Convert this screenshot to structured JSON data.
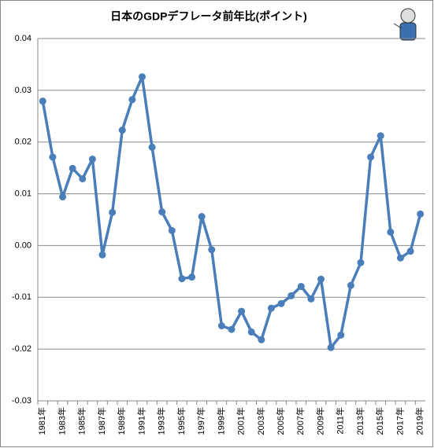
{
  "chart_data": {
    "type": "line",
    "title": "日本のGDPデフレータ前年比(ポイント)",
    "categories": [
      "1981年",
      null,
      "1983年",
      null,
      "1985年",
      null,
      "1987年",
      null,
      "1989年",
      null,
      "1991年",
      null,
      "1993年",
      null,
      "1995年",
      null,
      "1997年",
      null,
      "1999年",
      null,
      "2001年",
      null,
      "2003年",
      null,
      "2005年",
      null,
      "2007年",
      null,
      "2009年",
      null,
      "2011年",
      null,
      "2013年",
      null,
      "2015年",
      null,
      "2017年",
      null,
      "2019年"
    ],
    "values": [
      0.0279,
      0.0171,
      0.0094,
      0.0149,
      0.0129,
      0.0167,
      -0.0018,
      0.0064,
      0.0223,
      0.0282,
      0.0326,
      0.019,
      0.0065,
      0.0029,
      -0.0064,
      -0.0061,
      0.0056,
      -0.0008,
      -0.0155,
      -0.0162,
      -0.0127,
      -0.0167,
      -0.0182,
      -0.0121,
      -0.0112,
      -0.0097,
      -0.0079,
      -0.0103,
      -0.0065,
      -0.0197,
      -0.0173,
      -0.0077,
      -0.0033,
      0.0171,
      0.0212,
      0.0026,
      -0.0024,
      -0.0011,
      0.0061
    ],
    "color": "#4a7ebb",
    "ylim": [
      -0.03,
      0.04
    ],
    "yticks": [
      -0.03,
      -0.02,
      -0.01,
      {
        "value": 0,
        "label": "0.00"
      },
      0.01,
      0.02,
      0.03,
      0.04
    ],
    "grid": true
  }
}
